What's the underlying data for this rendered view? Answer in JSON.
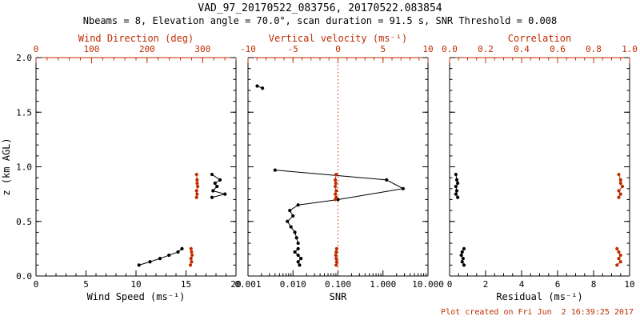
{
  "header": {
    "title": "VAD_97_20170522_083756, 20170522.083854",
    "subtitle": "Nbeams = 8, Elevation angle = 70.0°, scan duration = 91.5 s, SNR Threshold = 0.008"
  },
  "footer": {
    "created": "Plot created on Fri Jun  2 16:39:25 2017"
  },
  "colors": {
    "red": "#bf2b00",
    "black": "#000000"
  },
  "chart_data": [
    {
      "type": "scatter",
      "name": "wind",
      "xlabel_bottom": "Wind Speed (ms⁻¹)",
      "xlabel_top": "Wind Direction (deg)",
      "ylabel": "z (km AGL)",
      "x_bottom": {
        "scale": "linear",
        "min": 0,
        "max": 20,
        "ticks": [
          0,
          5,
          10,
          15,
          20
        ],
        "labels": [
          "0",
          "5",
          "10",
          "15",
          "20"
        ],
        "minor_step": 1
      },
      "x_top": {
        "scale": "linear",
        "min": 0,
        "max": 360,
        "ticks": [
          0,
          100,
          200,
          300
        ],
        "labels": [
          "0",
          "100",
          "200",
          "300"
        ],
        "minor_step": 20
      },
      "y_axis": {
        "min": 0,
        "max": 2,
        "ticks": [
          0,
          0.5,
          1,
          1.5,
          2
        ],
        "labels": [
          "0.0",
          "0.5",
          "1.0",
          "1.5",
          "2.0"
        ],
        "minor_step": 0.1,
        "show_labels": true
      },
      "series": [
        {
          "name": "wind-speed",
          "axis": "bottom",
          "color": "black",
          "segments": [
            [
              [
                10.3,
                0.1
              ],
              [
                11.4,
                0.13
              ],
              [
                12.4,
                0.16
              ],
              [
                13.3,
                0.19
              ],
              [
                14.2,
                0.22
              ],
              [
                14.6,
                0.25
              ]
            ],
            [
              [
                17.6,
                0.72
              ],
              [
                18.9,
                0.75
              ],
              [
                17.7,
                0.78
              ],
              [
                18.1,
                0.82
              ],
              [
                17.9,
                0.85
              ],
              [
                18.4,
                0.88
              ],
              [
                17.6,
                0.93
              ]
            ]
          ]
        },
        {
          "name": "wind-direction",
          "axis": "top",
          "color": "red",
          "segments": [
            [
              [
                278,
                0.1
              ],
              [
                280,
                0.13
              ],
              [
                279,
                0.16
              ],
              [
                281,
                0.19
              ],
              [
                280,
                0.22
              ],
              [
                279,
                0.25
              ]
            ],
            [
              [
                289,
                0.72
              ],
              [
                290,
                0.75
              ],
              [
                289,
                0.78
              ],
              [
                291,
                0.82
              ],
              [
                290,
                0.85
              ],
              [
                290,
                0.88
              ],
              [
                289,
                0.93
              ]
            ]
          ]
        }
      ]
    },
    {
      "type": "scatter",
      "name": "snr",
      "xlabel_bottom": "SNR",
      "xlabel_top": "Vertical velocity (ms⁻¹)",
      "ylabel": "",
      "x_bottom": {
        "scale": "log",
        "min": 0.001,
        "max": 10,
        "ticks": [
          0.001,
          0.01,
          0.1,
          1,
          10
        ],
        "labels": [
          "0.001",
          "0.010",
          "0.100",
          "1.000",
          "10.000"
        ]
      },
      "x_top": {
        "scale": "linear",
        "min": -10,
        "max": 10,
        "ticks": [
          -10,
          -5,
          0,
          5,
          10
        ],
        "labels": [
          "-10",
          "-5",
          "0",
          "5",
          "10"
        ],
        "minor_step": 1
      },
      "y_axis": {
        "min": 0,
        "max": 2,
        "ticks": [
          0,
          0.5,
          1,
          1.5,
          2
        ],
        "labels": [],
        "minor_step": 0.1,
        "show_labels": false
      },
      "ref_line_top_value": 0,
      "series": [
        {
          "name": "snr",
          "axis": "bottom",
          "color": "black",
          "segments": [
            [
              [
                0.0016,
                1.74
              ],
              [
                0.0021,
                1.72
              ]
            ],
            [
              [
                0.004,
                0.97
              ],
              [
                1.2,
                0.88
              ],
              [
                2.8,
                0.8
              ],
              [
                0.1,
                0.7
              ],
              [
                0.013,
                0.65
              ],
              [
                0.0085,
                0.6
              ],
              [
                0.01,
                0.55
              ],
              [
                0.0075,
                0.5
              ],
              [
                0.009,
                0.45
              ],
              [
                0.011,
                0.4
              ],
              [
                0.012,
                0.35
              ],
              [
                0.013,
                0.3
              ]
            ],
            [
              [
                0.013,
                0.25
              ],
              [
                0.011,
                0.22
              ],
              [
                0.013,
                0.19
              ],
              [
                0.015,
                0.16
              ],
              [
                0.013,
                0.13
              ],
              [
                0.014,
                0.1
              ]
            ]
          ]
        },
        {
          "name": "vertical-velocity",
          "axis": "top",
          "color": "red",
          "segments": [
            [
              [
                -0.2,
                0.1
              ],
              [
                -0.15,
                0.13
              ],
              [
                -0.2,
                0.16
              ],
              [
                -0.25,
                0.19
              ],
              [
                -0.2,
                0.22
              ],
              [
                -0.15,
                0.25
              ]
            ],
            [
              [
                -0.3,
                0.7
              ],
              [
                -0.2,
                0.72
              ],
              [
                -0.3,
                0.75
              ],
              [
                -0.2,
                0.78
              ],
              [
                -0.3,
                0.82
              ],
              [
                -0.25,
                0.85
              ],
              [
                -0.3,
                0.88
              ],
              [
                -0.2,
                0.93
              ]
            ]
          ]
        }
      ]
    },
    {
      "type": "scatter",
      "name": "residual",
      "xlabel_bottom": "Residual (ms⁻¹)",
      "xlabel_top": "Correlation",
      "ylabel": "",
      "x_bottom": {
        "scale": "linear",
        "min": 0,
        "max": 10,
        "ticks": [
          0,
          2,
          4,
          6,
          8,
          10
        ],
        "labels": [
          "0",
          "2",
          "4",
          "6",
          "8",
          "10"
        ],
        "minor_step": 0.5
      },
      "x_top": {
        "scale": "linear",
        "min": 0,
        "max": 1,
        "ticks": [
          0,
          0.2,
          0.4,
          0.6,
          0.8,
          1
        ],
        "labels": [
          "0.0",
          "0.2",
          "0.4",
          "0.6",
          "0.8",
          "1.0"
        ],
        "minor_step": 0.05
      },
      "y_axis": {
        "min": 0,
        "max": 2,
        "ticks": [
          0,
          0.5,
          1,
          1.5,
          2
        ],
        "labels": [],
        "minor_step": 0.1,
        "show_labels": false
      },
      "series": [
        {
          "name": "residual",
          "axis": "bottom",
          "color": "black",
          "segments": [
            [
              [
                0.8,
                0.1
              ],
              [
                0.7,
                0.13
              ],
              [
                0.75,
                0.16
              ],
              [
                0.65,
                0.19
              ],
              [
                0.7,
                0.22
              ],
              [
                0.8,
                0.25
              ]
            ],
            [
              [
                0.45,
                0.72
              ],
              [
                0.35,
                0.75
              ],
              [
                0.4,
                0.78
              ],
              [
                0.35,
                0.82
              ],
              [
                0.45,
                0.85
              ],
              [
                0.4,
                0.88
              ],
              [
                0.35,
                0.93
              ]
            ]
          ]
        },
        {
          "name": "correlation",
          "axis": "top",
          "color": "red",
          "segments": [
            [
              [
                0.93,
                0.1
              ],
              [
                0.95,
                0.13
              ],
              [
                0.94,
                0.16
              ],
              [
                0.95,
                0.19
              ],
              [
                0.94,
                0.22
              ],
              [
                0.93,
                0.25
              ]
            ],
            [
              [
                0.94,
                0.72
              ],
              [
                0.95,
                0.75
              ],
              [
                0.94,
                0.78
              ],
              [
                0.96,
                0.82
              ],
              [
                0.95,
                0.85
              ],
              [
                0.95,
                0.88
              ],
              [
                0.94,
                0.93
              ]
            ]
          ]
        }
      ]
    }
  ]
}
